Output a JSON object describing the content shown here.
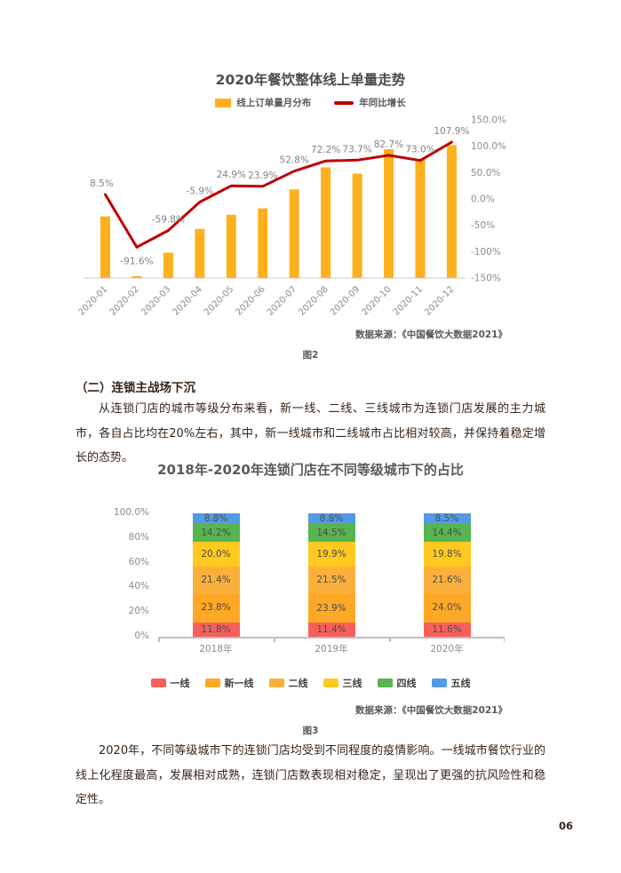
{
  "page": {
    "number": "06"
  },
  "chart1": {
    "title": "2020年餐饮整体线上单量走势",
    "source": "数据来源：《中国餐饮大数据2021》",
    "caption": "图2",
    "legend": [
      {
        "label": "线上订单量月分布",
        "swatch": "bar",
        "color": "#FFB01E"
      },
      {
        "label": "年同比增长",
        "swatch": "line",
        "color": "#C00000"
      }
    ]
  },
  "section": {
    "heading": "（二）连锁主战场下沉",
    "paragraph1": "从连锁门店的城市等级分布来看，新一线、二线、三线城市为连锁门店发展的主力城市，各自占比均在20%左右，其中，新一线城市和二线城市占比相对较高，并保持着稳定增长的态势。",
    "paragraph2": "2020年，不同等级城市下的连锁门店均受到不同程度的疫情影响。一线城市餐饮行业的线上化程度最高，发展相对成熟，连锁门店数表现相对稳定，呈现出了更强的抗风险性和稳定性。"
  },
  "chart2": {
    "title": "2018年-2020年连锁门店在不同等级城市下的占比",
    "source": "数据来源：《中国餐饮大数据2021》",
    "caption": "图3"
  },
  "chart_data": [
    {
      "id": "online-order-volume-trend-2020",
      "type": "bar+line",
      "title": "2020年餐饮整体线上单量走势",
      "categories": [
        "2020-01",
        "2020-02",
        "2020-03",
        "2020-04",
        "2020-05",
        "2020-06",
        "2020-07",
        "2020-08",
        "2020-09",
        "2020-10",
        "2020-11",
        "2020-12"
      ],
      "series": [
        {
          "name": "线上订单量月分布",
          "type": "bar",
          "color": "#FFB01E",
          "axis": "hidden",
          "relative_heights": [
            0.39,
            0.012,
            0.16,
            0.31,
            0.4,
            0.44,
            0.56,
            0.7,
            0.66,
            0.815,
            0.75,
            0.84
          ]
        },
        {
          "name": "年同比增长",
          "type": "line",
          "color": "#C00000",
          "axis": "right",
          "values_pct": [
            8.5,
            -91.6,
            -59.8,
            -5.9,
            24.9,
            23.9,
            52.8,
            72.2,
            73.7,
            82.7,
            73.0,
            107.9
          ],
          "labels": [
            "8.5%",
            "-91.6%",
            "-59.8%",
            "-5.9%",
            "24.9%",
            "23.9%",
            "52.8%",
            "72.2%",
            "73.7%",
            "82.7%",
            "73.0%",
            "107.9%"
          ]
        }
      ],
      "right_axis": {
        "range": [
          -150,
          150
        ],
        "ticks": [
          {
            "value": 150,
            "label": "150.0%"
          },
          {
            "value": 100,
            "label": "100.0%"
          },
          {
            "value": 50,
            "label": "50.0%"
          },
          {
            "value": 0,
            "label": "0.0%"
          },
          {
            "value": -50,
            "label": "-50%"
          },
          {
            "value": -100,
            "label": "-100%"
          },
          {
            "value": -150,
            "label": "-150%"
          }
        ]
      },
      "grid": false,
      "legend_position": "top"
    },
    {
      "id": "chain-store-city-tier-share",
      "type": "stacked-bar",
      "title": "2018年-2020年连锁门店在不同等级城市下的占比",
      "categories": [
        "2018年",
        "2019年",
        "2020年"
      ],
      "unit": "%",
      "series": [
        {
          "name": "一线",
          "color": "#F7605A",
          "values": [
            11.8,
            11.4,
            11.6
          ]
        },
        {
          "name": "新一线",
          "color": "#FFA826",
          "values": [
            23.8,
            23.9,
            24.0
          ]
        },
        {
          "name": "二线",
          "color": "#FBB03B",
          "values": [
            21.4,
            21.5,
            21.6
          ]
        },
        {
          "name": "三线",
          "color": "#FFC91F",
          "values": [
            20.0,
            19.9,
            19.8
          ]
        },
        {
          "name": "四线",
          "color": "#57B44F",
          "values": [
            14.2,
            14.5,
            14.4
          ]
        },
        {
          "name": "五线",
          "color": "#549BE5",
          "values": [
            8.8,
            8.8,
            8.5
          ]
        }
      ],
      "y_axis": {
        "range": [
          0,
          100
        ],
        "ticks": [
          {
            "value": 100,
            "label": "100.0%"
          },
          {
            "value": 80,
            "label": "80%"
          },
          {
            "value": 60,
            "label": "60%"
          },
          {
            "value": 40,
            "label": "40%"
          },
          {
            "value": 20,
            "label": "20%"
          },
          {
            "value": 0,
            "label": "0%"
          }
        ]
      },
      "grid": false,
      "legend_position": "bottom"
    }
  ]
}
